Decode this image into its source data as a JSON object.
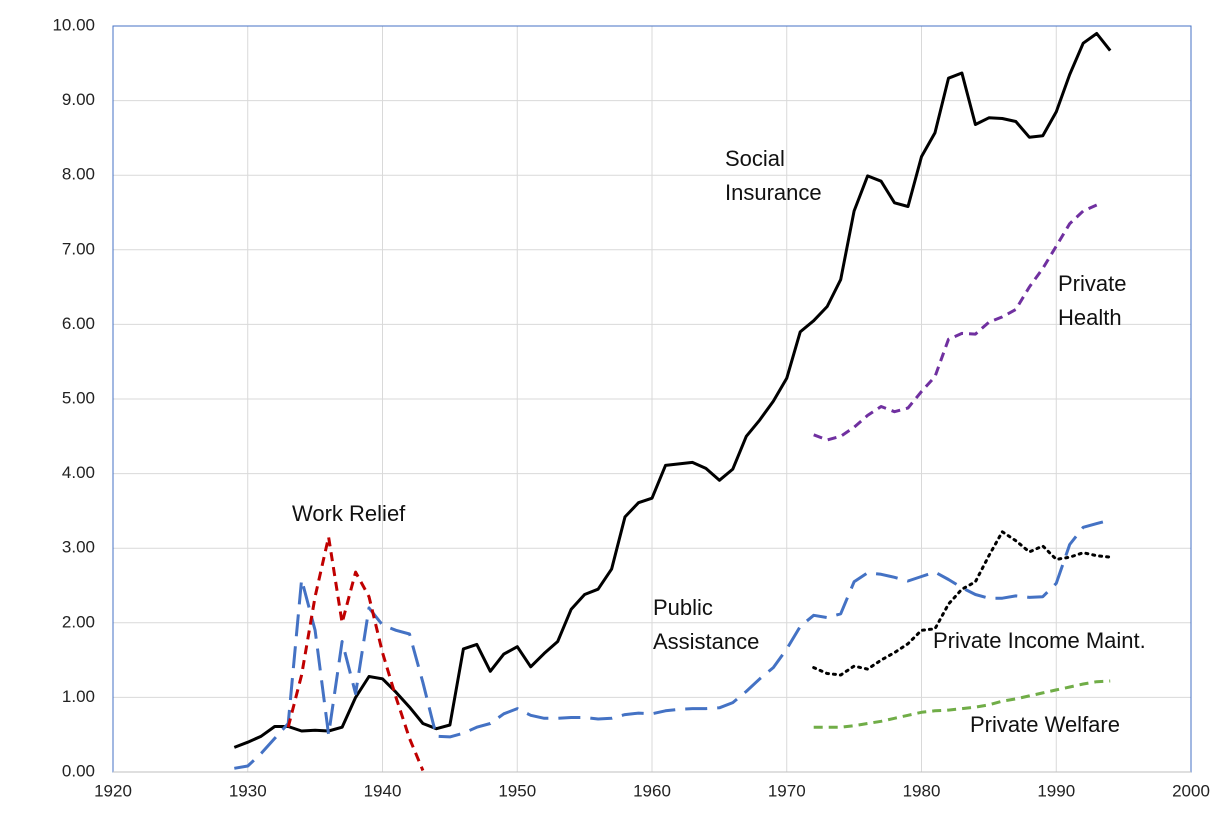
{
  "chart_data": {
    "type": "line",
    "x": [
      1929,
      1930,
      1931,
      1932,
      1933,
      1934,
      1935,
      1936,
      1937,
      1938,
      1939,
      1940,
      1941,
      1942,
      1943,
      1944,
      1945,
      1946,
      1947,
      1948,
      1949,
      1950,
      1951,
      1952,
      1953,
      1954,
      1955,
      1956,
      1957,
      1958,
      1959,
      1960,
      1961,
      1962,
      1963,
      1964,
      1965,
      1966,
      1967,
      1968,
      1969,
      1970,
      1971,
      1972,
      1973,
      1974,
      1975,
      1976,
      1977,
      1978,
      1979,
      1980,
      1981,
      1982,
      1983,
      1984,
      1985,
      1986,
      1987,
      1988,
      1989,
      1990,
      1991,
      1992,
      1993,
      1994
    ],
    "series": [
      {
        "name": "Social Insurance",
        "color": "#000000",
        "dash": "solid",
        "values": [
          0.33,
          0.4,
          0.48,
          0.61,
          0.61,
          0.55,
          0.56,
          0.55,
          0.6,
          1.0,
          1.28,
          1.25,
          1.07,
          0.87,
          0.65,
          0.58,
          0.63,
          1.65,
          1.71,
          1.35,
          1.58,
          1.68,
          1.41,
          1.59,
          1.75,
          2.18,
          2.38,
          2.45,
          2.72,
          3.42,
          3.61,
          3.67,
          4.11,
          4.13,
          4.15,
          4.07,
          3.91,
          4.06,
          4.5,
          4.72,
          4.97,
          5.28,
          5.9,
          6.05,
          6.24,
          6.6,
          7.52,
          7.99,
          7.92,
          7.63,
          7.58,
          8.25,
          8.57,
          9.3,
          9.37,
          8.68,
          8.77,
          8.76,
          8.72,
          8.51,
          8.53,
          8.85,
          9.35,
          9.77,
          9.9,
          9.67
        ]
      },
      {
        "name": "Public Assistance",
        "color": "#4472c4",
        "dash": "longdash",
        "values": [
          0.05,
          0.08,
          0.25,
          0.45,
          0.65,
          2.58,
          1.9,
          0.5,
          1.75,
          1.05,
          2.2,
          1.97,
          1.9,
          1.85,
          1.2,
          0.48,
          0.47,
          0.52,
          0.6,
          0.65,
          0.78,
          0.85,
          0.76,
          0.72,
          0.72,
          0.73,
          0.73,
          0.71,
          0.72,
          0.77,
          0.79,
          0.78,
          0.82,
          0.84,
          0.85,
          0.85,
          0.86,
          0.93,
          1.08,
          1.25,
          1.4,
          1.65,
          1.95,
          2.1,
          2.07,
          2.12,
          2.55,
          2.67,
          2.65,
          2.61,
          2.56,
          2.62,
          2.68,
          2.58,
          2.47,
          2.38,
          2.33,
          2.33,
          2.36,
          2.34,
          2.35,
          2.53,
          3.05,
          3.28,
          3.33,
          3.38
        ]
      },
      {
        "name": "Work Relief",
        "color": "#c00000",
        "dash": "dash",
        "values": [
          null,
          null,
          null,
          null,
          0.6,
          1.3,
          2.35,
          3.15,
          2.0,
          2.68,
          2.35,
          1.6,
          1.0,
          0.45,
          0.02,
          null,
          null,
          null,
          null,
          null,
          null,
          null,
          null,
          null,
          null,
          null,
          null,
          null,
          null,
          null,
          null,
          null,
          null,
          null,
          null,
          null,
          null,
          null,
          null,
          null,
          null,
          null,
          null,
          null,
          null,
          null,
          null,
          null,
          null,
          null,
          null,
          null,
          null,
          null,
          null,
          null,
          null,
          null,
          null,
          null,
          null,
          null,
          null,
          null,
          null,
          null
        ]
      },
      {
        "name": "Private Health",
        "color": "#7030a0",
        "dash": "dash",
        "values": [
          null,
          null,
          null,
          null,
          null,
          null,
          null,
          null,
          null,
          null,
          null,
          null,
          null,
          null,
          null,
          null,
          null,
          null,
          null,
          null,
          null,
          null,
          null,
          null,
          null,
          null,
          null,
          null,
          null,
          null,
          null,
          null,
          null,
          null,
          null,
          null,
          null,
          null,
          null,
          null,
          null,
          null,
          null,
          4.52,
          4.45,
          4.5,
          4.62,
          4.78,
          4.9,
          4.83,
          4.88,
          5.1,
          5.3,
          5.8,
          5.88,
          5.87,
          6.03,
          6.1,
          6.2,
          6.5,
          6.75,
          7.05,
          7.35,
          7.52,
          7.6,
          null
        ]
      },
      {
        "name": "Private Income Maint.",
        "color": "#000000",
        "dash": "dot",
        "values": [
          null,
          null,
          null,
          null,
          null,
          null,
          null,
          null,
          null,
          null,
          null,
          null,
          null,
          null,
          null,
          null,
          null,
          null,
          null,
          null,
          null,
          null,
          null,
          null,
          null,
          null,
          null,
          null,
          null,
          null,
          null,
          null,
          null,
          null,
          null,
          null,
          null,
          null,
          null,
          null,
          null,
          null,
          null,
          1.4,
          1.32,
          1.3,
          1.42,
          1.38,
          1.5,
          1.6,
          1.72,
          1.9,
          1.92,
          2.25,
          2.45,
          2.55,
          2.9,
          3.22,
          3.1,
          2.95,
          3.03,
          2.85,
          2.88,
          2.94,
          2.9,
          2.88
        ]
      },
      {
        "name": "Private Welfare",
        "color": "#70ad47",
        "dash": "dash",
        "values": [
          null,
          null,
          null,
          null,
          null,
          null,
          null,
          null,
          null,
          null,
          null,
          null,
          null,
          null,
          null,
          null,
          null,
          null,
          null,
          null,
          null,
          null,
          null,
          null,
          null,
          null,
          null,
          null,
          null,
          null,
          null,
          null,
          null,
          null,
          null,
          null,
          null,
          null,
          null,
          null,
          null,
          null,
          null,
          0.6,
          0.6,
          0.6,
          0.62,
          0.65,
          0.68,
          0.72,
          0.76,
          0.8,
          0.82,
          0.83,
          0.85,
          0.87,
          0.9,
          0.95,
          0.98,
          1.02,
          1.06,
          1.1,
          1.14,
          1.18,
          1.21,
          1.22
        ]
      }
    ],
    "xlim": [
      1920,
      2000
    ],
    "xticks": [
      1920,
      1930,
      1940,
      1950,
      1960,
      1970,
      1980,
      1990,
      2000
    ],
    "ylim": [
      0,
      10
    ],
    "yticks": [
      {
        "value": 0,
        "label": "0.00"
      },
      {
        "value": 1,
        "label": "1.00"
      },
      {
        "value": 2,
        "label": "2.00"
      },
      {
        "value": 3,
        "label": "3.00"
      },
      {
        "value": 4,
        "label": "4.00"
      },
      {
        "value": 5,
        "label": "5.00"
      },
      {
        "value": 6,
        "label": "6.00"
      },
      {
        "value": 7,
        "label": "7.00"
      },
      {
        "value": 8,
        "label": "8.00"
      },
      {
        "value": 9,
        "label": "9.00"
      },
      {
        "value": 10,
        "label": "10.00"
      }
    ],
    "grid": true
  }
}
